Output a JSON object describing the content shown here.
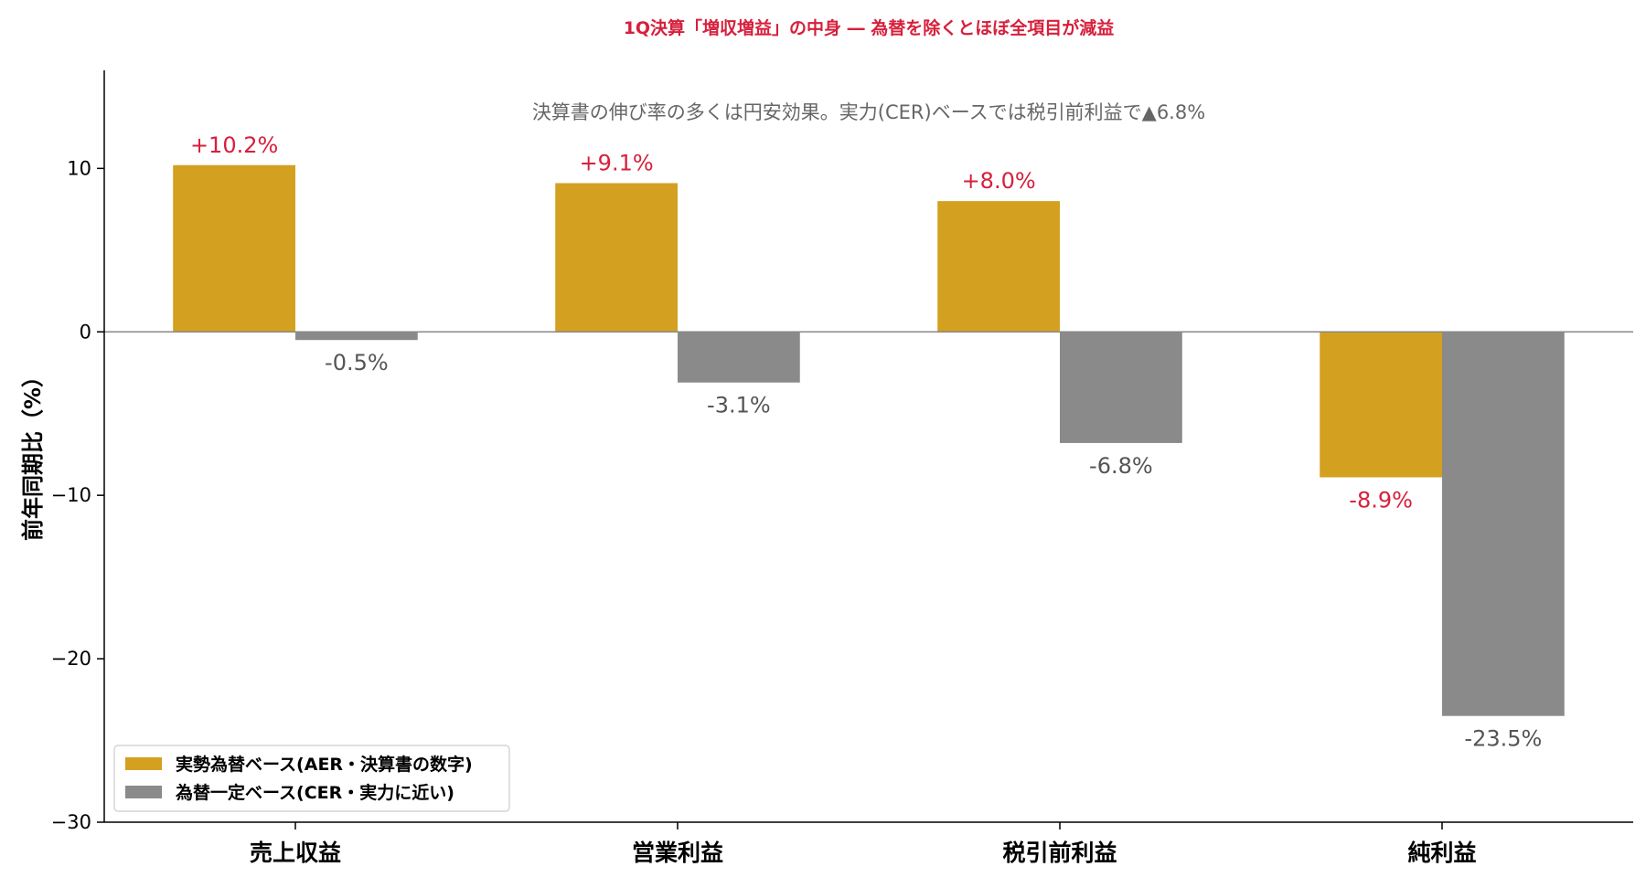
{
  "chart_data": {
    "type": "bar",
    "title": "1Q決算「増収増益」の中身 ― 為替を除くとほぼ全項目が減益",
    "annotation": "決算書の伸び率の多くは円安効果。実力(CER)ベースでは税引前利益で▲6.8%",
    "xlabel": "",
    "ylabel": "前年同期比（%）",
    "categories": [
      "売上収益",
      "営業利益",
      "税引前利益",
      "純利益"
    ],
    "series": [
      {
        "name": "実勢為替ベース(AER・決算書の数字)",
        "color": "#d4a020",
        "label_color": "#d6203c",
        "values": [
          10.2,
          9.1,
          8.0,
          -8.9
        ],
        "labels": [
          "+10.2%",
          "+9.1%",
          "+8.0%",
          "-8.9%"
        ]
      },
      {
        "name": "為替一定ベース(CER・実力に近い)",
        "color": "#8a8a8a",
        "label_color": "#555555",
        "values": [
          -0.5,
          -3.1,
          -6.8,
          -23.5
        ],
        "labels": [
          "-0.5%",
          "-3.1%",
          "-6.8%",
          "-23.5%"
        ]
      }
    ],
    "yticks": [
      10,
      0,
      -10,
      -20,
      -30
    ],
    "ytick_labels": [
      "10",
      "0",
      "−10",
      "−20",
      "−30"
    ],
    "ylim": [
      -30,
      16
    ],
    "grid": false,
    "legend_position": "lower-left",
    "colors": {
      "title": "#d6203c",
      "annotation": "#666666",
      "axis": "#000000",
      "zero_line": "#888888"
    }
  }
}
